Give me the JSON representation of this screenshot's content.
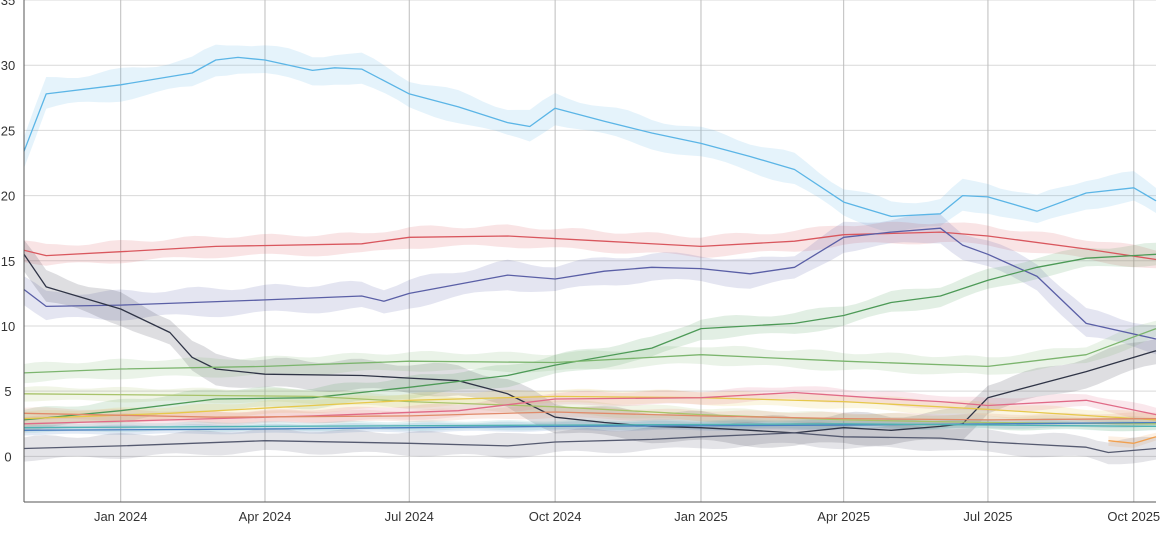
{
  "chart_data": {
    "type": "line",
    "title": "",
    "xlabel": "",
    "ylabel": "",
    "x_range": [
      "2023-11-01",
      "2025-10-15"
    ],
    "ylim": [
      -3.5,
      35
    ],
    "y_ticks": [
      0,
      5,
      10,
      15,
      20,
      25,
      30,
      35
    ],
    "x_ticks": [
      {
        "date": "2024-01-01",
        "label": "Jan 2024"
      },
      {
        "date": "2024-04-01",
        "label": "Apr 2024"
      },
      {
        "date": "2024-07-01",
        "label": "Jul 2024"
      },
      {
        "date": "2024-10-01",
        "label": "Oct 2024"
      },
      {
        "date": "2025-01-01",
        "label": "Jan 2025"
      },
      {
        "date": "2025-04-01",
        "label": "Apr 2025"
      },
      {
        "date": "2025-07-01",
        "label": "Jul 2025"
      },
      {
        "date": "2025-10-01",
        "label": "Oct 2025"
      }
    ],
    "grid": true,
    "legend": "none",
    "series": [
      {
        "name": "light-blue",
        "color": "#5bb5e6",
        "band": 1.3,
        "points": [
          [
            "2023-11-01",
            23.4
          ],
          [
            "2023-11-15",
            27.8
          ],
          [
            "2024-01-01",
            28.5
          ],
          [
            "2024-02-15",
            29.4
          ],
          [
            "2024-03-01",
            30.4
          ],
          [
            "2024-03-15",
            30.6
          ],
          [
            "2024-04-01",
            30.4
          ],
          [
            "2024-05-01",
            29.6
          ],
          [
            "2024-05-15",
            29.8
          ],
          [
            "2024-06-01",
            29.7
          ],
          [
            "2024-07-01",
            27.8
          ],
          [
            "2024-08-01",
            26.8
          ],
          [
            "2024-09-01",
            25.6
          ],
          [
            "2024-09-15",
            25.3
          ],
          [
            "2024-10-01",
            26.7
          ],
          [
            "2024-11-01",
            25.7
          ],
          [
            "2024-12-01",
            24.8
          ],
          [
            "2025-01-01",
            24.0
          ],
          [
            "2025-02-01",
            23.0
          ],
          [
            "2025-03-01",
            22.0
          ],
          [
            "2025-04-01",
            19.5
          ],
          [
            "2025-05-01",
            18.4
          ],
          [
            "2025-06-01",
            18.6
          ],
          [
            "2025-06-15",
            20.0
          ],
          [
            "2025-07-01",
            19.9
          ],
          [
            "2025-08-01",
            18.8
          ],
          [
            "2025-09-01",
            20.2
          ],
          [
            "2025-10-01",
            20.6
          ],
          [
            "2025-10-15",
            19.6
          ]
        ]
      },
      {
        "name": "red",
        "color": "#d9575e",
        "band": 0.9,
        "points": [
          [
            "2023-11-01",
            15.8
          ],
          [
            "2023-11-15",
            15.4
          ],
          [
            "2024-01-01",
            15.7
          ],
          [
            "2024-03-01",
            16.1
          ],
          [
            "2024-06-01",
            16.3
          ],
          [
            "2024-07-01",
            16.8
          ],
          [
            "2024-09-01",
            16.9
          ],
          [
            "2024-11-01",
            16.5
          ],
          [
            "2025-01-01",
            16.1
          ],
          [
            "2025-03-01",
            16.5
          ],
          [
            "2025-04-01",
            17.0
          ],
          [
            "2025-06-01",
            17.2
          ],
          [
            "2025-07-01",
            16.9
          ],
          [
            "2025-09-01",
            15.9
          ],
          [
            "2025-10-15",
            15.1
          ]
        ]
      },
      {
        "name": "navy",
        "color": "#5a5fa6",
        "band": 1.2,
        "points": [
          [
            "2023-11-01",
            12.8
          ],
          [
            "2023-11-15",
            11.5
          ],
          [
            "2024-01-01",
            11.6
          ],
          [
            "2024-04-01",
            12.0
          ],
          [
            "2024-06-01",
            12.3
          ],
          [
            "2024-06-15",
            11.9
          ],
          [
            "2024-07-01",
            12.5
          ],
          [
            "2024-09-01",
            13.9
          ],
          [
            "2024-10-01",
            13.6
          ],
          [
            "2024-11-01",
            14.2
          ],
          [
            "2024-12-01",
            14.5
          ],
          [
            "2025-01-01",
            14.4
          ],
          [
            "2025-02-01",
            14.0
          ],
          [
            "2025-03-01",
            14.5
          ],
          [
            "2025-04-01",
            16.8
          ],
          [
            "2025-05-01",
            17.2
          ],
          [
            "2025-06-01",
            17.5
          ],
          [
            "2025-06-15",
            16.2
          ],
          [
            "2025-07-01",
            15.5
          ],
          [
            "2025-08-01",
            13.8
          ],
          [
            "2025-09-01",
            10.2
          ],
          [
            "2025-10-15",
            9.0
          ]
        ]
      },
      {
        "name": "dark-slate",
        "color": "#2f3446",
        "band": 1.3,
        "points": [
          [
            "2023-11-01",
            15.5
          ],
          [
            "2023-11-15",
            13.0
          ],
          [
            "2024-01-01",
            11.3
          ],
          [
            "2024-02-01",
            9.5
          ],
          [
            "2024-02-15",
            7.6
          ],
          [
            "2024-03-01",
            6.7
          ],
          [
            "2024-04-01",
            6.3
          ],
          [
            "2024-06-01",
            6.2
          ],
          [
            "2024-07-01",
            6.0
          ],
          [
            "2024-08-01",
            5.8
          ],
          [
            "2024-09-01",
            4.8
          ],
          [
            "2024-10-01",
            3.0
          ],
          [
            "2024-11-01",
            2.6
          ],
          [
            "2024-12-01",
            2.3
          ],
          [
            "2025-01-01",
            2.2
          ],
          [
            "2025-02-01",
            2.0
          ],
          [
            "2025-03-01",
            1.8
          ],
          [
            "2025-04-01",
            2.2
          ],
          [
            "2025-05-01",
            2.0
          ],
          [
            "2025-06-01",
            2.3
          ],
          [
            "2025-06-15",
            2.5
          ],
          [
            "2025-07-01",
            4.5
          ],
          [
            "2025-08-01",
            5.5
          ],
          [
            "2025-09-01",
            6.5
          ],
          [
            "2025-10-15",
            8.1
          ]
        ]
      },
      {
        "name": "green",
        "color": "#4d9a57",
        "band": 0.9,
        "points": [
          [
            "2023-11-01",
            2.8
          ],
          [
            "2024-01-01",
            3.5
          ],
          [
            "2024-03-01",
            4.4
          ],
          [
            "2024-05-01",
            4.5
          ],
          [
            "2024-07-01",
            5.3
          ],
          [
            "2024-09-01",
            6.2
          ],
          [
            "2024-10-01",
            7.0
          ],
          [
            "2024-12-01",
            8.3
          ],
          [
            "2025-01-01",
            9.8
          ],
          [
            "2025-03-01",
            10.2
          ],
          [
            "2025-04-01",
            10.8
          ],
          [
            "2025-05-01",
            11.8
          ],
          [
            "2025-06-01",
            12.3
          ],
          [
            "2025-07-01",
            13.5
          ],
          [
            "2025-08-01",
            14.5
          ],
          [
            "2025-09-01",
            15.2
          ],
          [
            "2025-10-15",
            15.5
          ]
        ]
      },
      {
        "name": "light-green",
        "color": "#7cb56e",
        "band": 0.8,
        "points": [
          [
            "2023-11-01",
            6.4
          ],
          [
            "2024-01-01",
            6.7
          ],
          [
            "2024-04-01",
            6.9
          ],
          [
            "2024-07-01",
            7.3
          ],
          [
            "2024-10-01",
            7.2
          ],
          [
            "2025-01-01",
            7.8
          ],
          [
            "2025-04-01",
            7.3
          ],
          [
            "2025-07-01",
            6.9
          ],
          [
            "2025-09-01",
            7.8
          ],
          [
            "2025-10-15",
            9.8
          ]
        ]
      },
      {
        "name": "olive",
        "color": "#a8c36a",
        "band": 0.6,
        "points": [
          [
            "2023-11-01",
            4.8
          ],
          [
            "2024-02-01",
            4.7
          ],
          [
            "2024-05-01",
            4.6
          ],
          [
            "2024-07-01",
            4.2
          ],
          [
            "2024-10-01",
            3.8
          ],
          [
            "2025-01-01",
            3.2
          ],
          [
            "2025-04-01",
            2.8
          ],
          [
            "2025-07-01",
            2.6
          ],
          [
            "2025-10-15",
            2.5
          ]
        ]
      },
      {
        "name": "yellow",
        "color": "#e6c84b",
        "band": 0.6,
        "points": [
          [
            "2023-11-01",
            2.9
          ],
          [
            "2024-02-01",
            3.3
          ],
          [
            "2024-05-01",
            3.9
          ],
          [
            "2024-07-01",
            4.3
          ],
          [
            "2024-10-01",
            4.6
          ],
          [
            "2025-01-01",
            4.5
          ],
          [
            "2025-04-01",
            4.2
          ],
          [
            "2025-07-01",
            3.6
          ],
          [
            "2025-10-15",
            2.8
          ]
        ]
      },
      {
        "name": "pink",
        "color": "#e06a87",
        "band": 0.6,
        "points": [
          [
            "2023-11-01",
            2.5
          ],
          [
            "2024-02-01",
            2.8
          ],
          [
            "2024-05-01",
            3.1
          ],
          [
            "2024-08-01",
            3.5
          ],
          [
            "2024-10-01",
            4.4
          ],
          [
            "2025-01-01",
            4.5
          ],
          [
            "2025-03-01",
            4.9
          ],
          [
            "2025-05-01",
            4.4
          ],
          [
            "2025-06-01",
            4.2
          ],
          [
            "2025-07-01",
            3.9
          ],
          [
            "2025-09-01",
            4.3
          ],
          [
            "2025-10-15",
            3.2
          ]
        ]
      },
      {
        "name": "salmon",
        "color": "#e08a6a",
        "band": 0.5,
        "points": [
          [
            "2023-11-01",
            3.3
          ],
          [
            "2024-03-01",
            3.0
          ],
          [
            "2024-07-01",
            3.1
          ],
          [
            "2024-10-01",
            3.4
          ],
          [
            "2025-01-01",
            3.1
          ],
          [
            "2025-04-01",
            2.9
          ],
          [
            "2025-07-01",
            2.8
          ],
          [
            "2025-10-15",
            2.9
          ]
        ]
      },
      {
        "name": "blue-flat",
        "color": "#4a7fc1",
        "band": 0.4,
        "points": [
          [
            "2023-11-01",
            2.0
          ],
          [
            "2024-04-01",
            2.1
          ],
          [
            "2024-10-01",
            2.3
          ],
          [
            "2025-04-01",
            2.4
          ],
          [
            "2025-10-15",
            2.6
          ]
        ]
      },
      {
        "name": "teal",
        "color": "#4fb3b3",
        "band": 0.4,
        "points": [
          [
            "2023-11-01",
            2.2
          ],
          [
            "2024-04-01",
            2.3
          ],
          [
            "2024-10-01",
            2.4
          ],
          [
            "2025-04-01",
            2.5
          ],
          [
            "2025-10-15",
            2.3
          ]
        ]
      },
      {
        "name": "orange",
        "color": "#f0a050",
        "band": 0.4,
        "points": [
          [
            "2025-09-15",
            1.2
          ],
          [
            "2025-10-01",
            1.0
          ],
          [
            "2025-10-15",
            1.5
          ]
        ]
      },
      {
        "name": "gray-bottom",
        "color": "#555a70",
        "band": 1.0,
        "points": [
          [
            "2023-11-01",
            0.6
          ],
          [
            "2024-01-01",
            0.8
          ],
          [
            "2024-04-01",
            1.2
          ],
          [
            "2024-07-01",
            1.0
          ],
          [
            "2024-09-01",
            0.8
          ],
          [
            "2024-10-01",
            1.1
          ],
          [
            "2024-12-01",
            1.3
          ],
          [
            "2025-01-01",
            1.5
          ],
          [
            "2025-03-01",
            1.8
          ],
          [
            "2025-04-01",
            1.5
          ],
          [
            "2025-06-01",
            1.4
          ],
          [
            "2025-07-01",
            1.1
          ],
          [
            "2025-09-01",
            0.7
          ],
          [
            "2025-09-15",
            0.3
          ],
          [
            "2025-10-15",
            0.6
          ]
        ]
      }
    ]
  }
}
